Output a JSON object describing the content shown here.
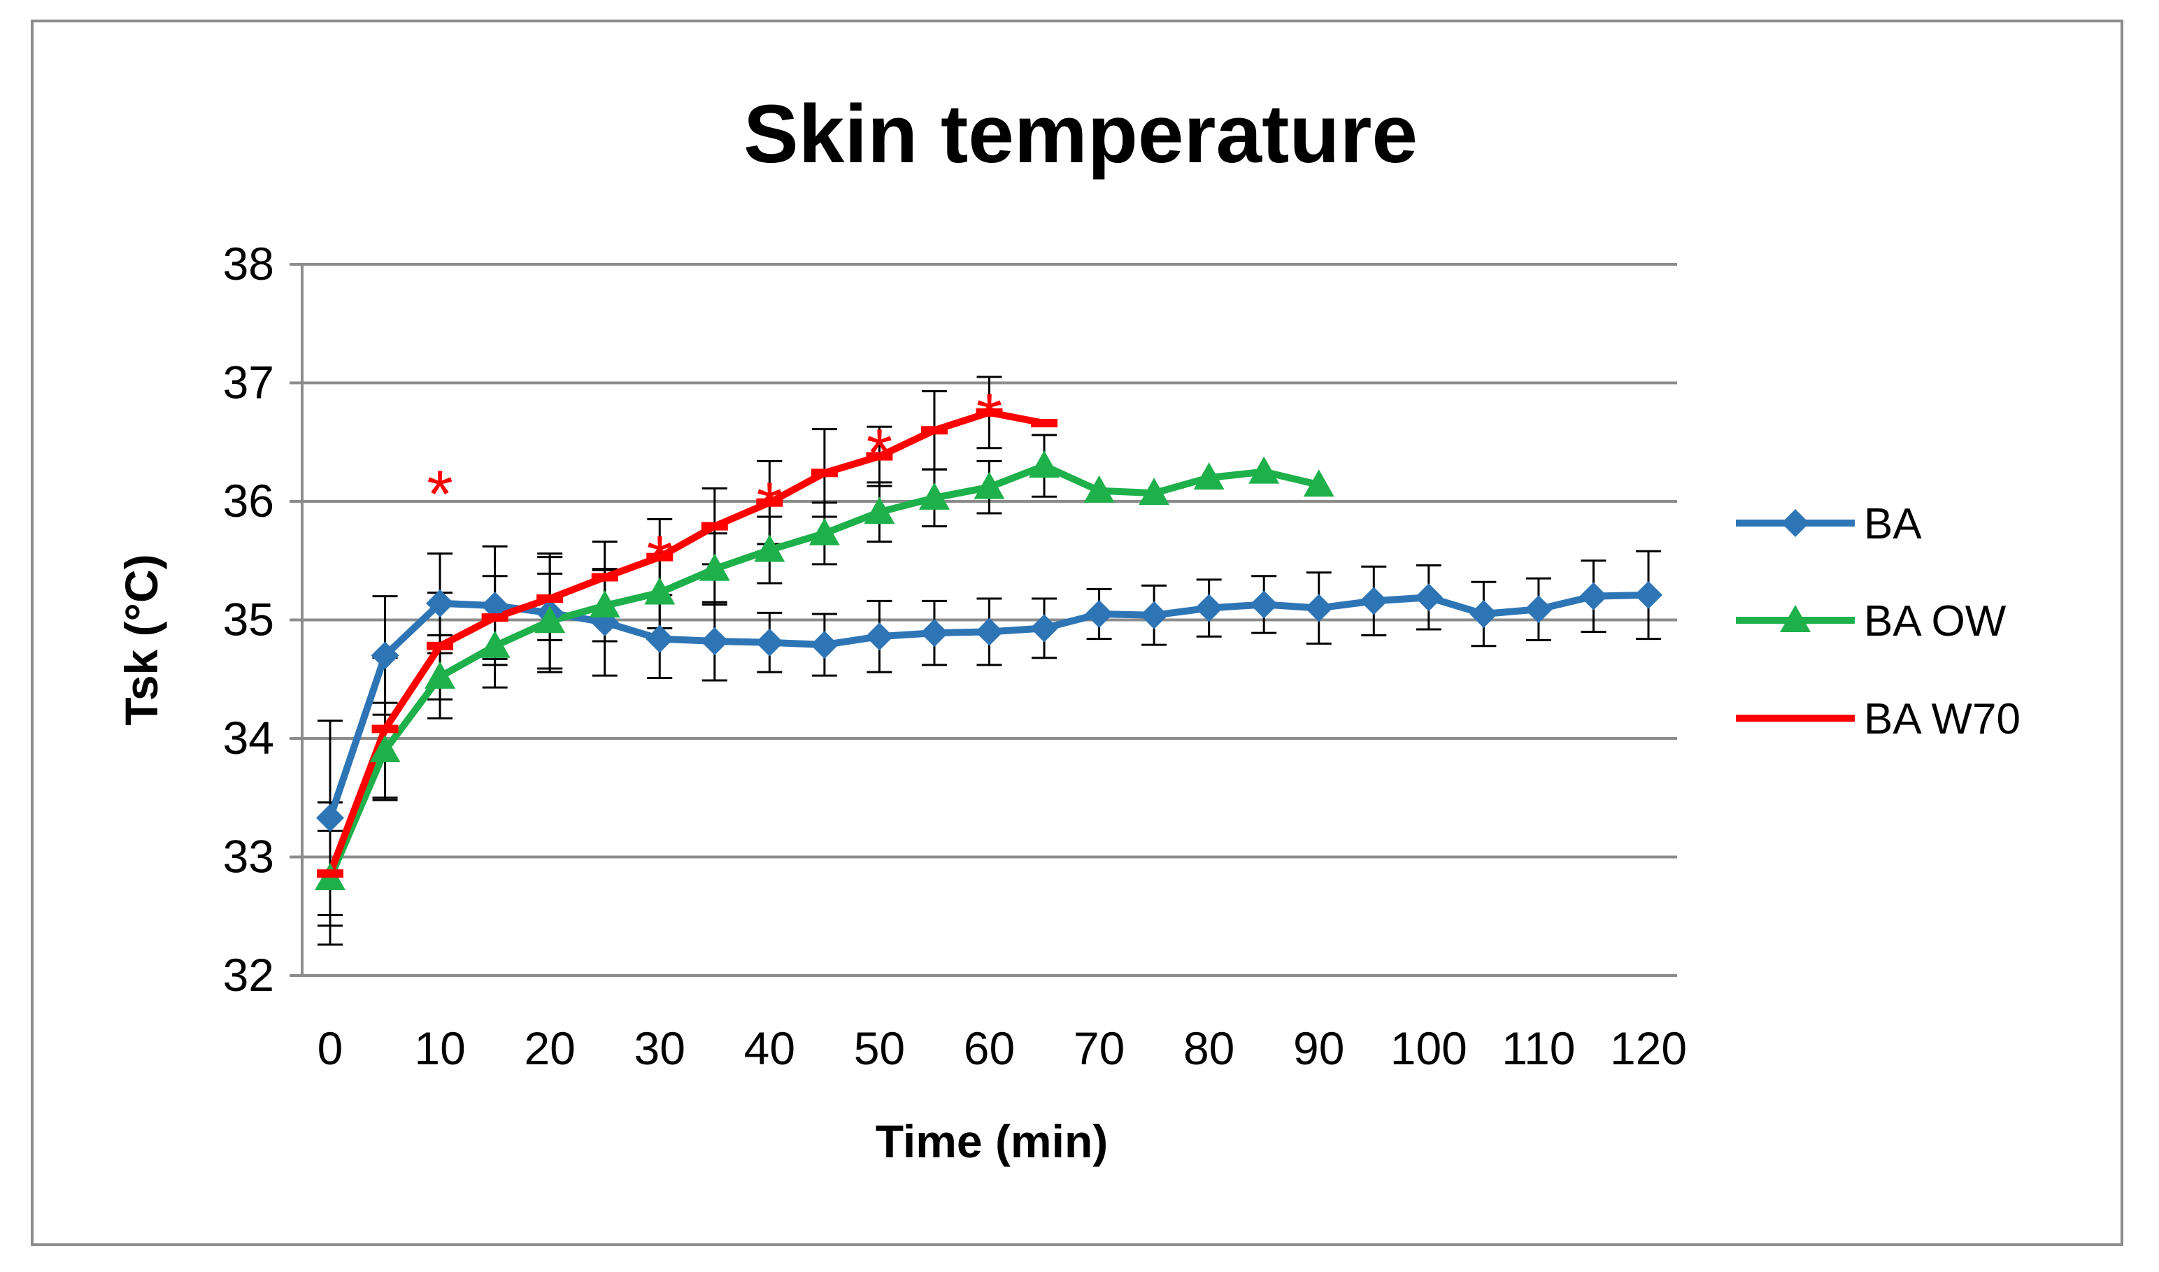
{
  "chart_data": {
    "type": "line",
    "title": "Skin temperature",
    "xlabel": "Time (min)",
    "ylabel": "Tsk (°C)",
    "xlim": [
      0,
      120
    ],
    "ylim": [
      32,
      38
    ],
    "x_ticks": [
      0,
      10,
      20,
      30,
      40,
      50,
      60,
      70,
      80,
      90,
      100,
      110,
      120
    ],
    "y_ticks": [
      32,
      33,
      34,
      35,
      36,
      37,
      38
    ],
    "grid": "horizontal",
    "legend_position": "right",
    "series": [
      {
        "name": "BA",
        "color": "#2e75b6",
        "marker": "diamond",
        "x": [
          0,
          5,
          10,
          15,
          20,
          25,
          30,
          35,
          40,
          45,
          50,
          55,
          60,
          65,
          70,
          75,
          80,
          85,
          90,
          95,
          100,
          105,
          110,
          115,
          120
        ],
        "values": [
          33.33,
          34.7,
          35.14,
          35.12,
          35.06,
          34.98,
          34.84,
          34.82,
          34.81,
          34.79,
          34.86,
          34.89,
          34.9,
          34.93,
          35.05,
          35.04,
          35.1,
          35.13,
          35.1,
          35.16,
          35.19,
          35.05,
          35.09,
          35.2,
          35.21
        ],
        "errors": [
          0.82,
          0.5,
          0.42,
          0.5,
          0.5,
          0.45,
          0.33,
          0.33,
          0.25,
          0.26,
          0.3,
          0.27,
          0.28,
          0.25,
          0.21,
          0.25,
          0.24,
          0.24,
          0.3,
          0.29,
          0.27,
          0.27,
          0.26,
          0.3,
          0.37
        ]
      },
      {
        "name": "BA OW",
        "color": "#1eb04a",
        "marker": "triangle",
        "x": [
          0,
          5,
          10,
          15,
          20,
          25,
          30,
          35,
          40,
          45,
          50,
          55,
          60,
          65,
          70,
          75,
          80,
          85,
          90
        ],
        "values": [
          32.82,
          33.9,
          34.52,
          34.78,
          34.99,
          35.12,
          35.23,
          35.43,
          35.59,
          35.73,
          35.91,
          36.03,
          36.12,
          36.3,
          36.09,
          36.07,
          36.2,
          36.25,
          36.14
        ],
        "errors": [
          0.4,
          0.4,
          0.35,
          0.35,
          0.4,
          0.3,
          0.3,
          0.3,
          0.28,
          0.26,
          0.25,
          0.24,
          0.22,
          0.26,
          0,
          0,
          0,
          0,
          0
        ]
      },
      {
        "name": "BA W70",
        "color": "#ff0000",
        "marker": "dash",
        "x": [
          0,
          5,
          10,
          15,
          20,
          25,
          30,
          35,
          40,
          45,
          50,
          55,
          60,
          65
        ],
        "values": [
          32.86,
          34.08,
          34.78,
          35.02,
          35.18,
          35.36,
          35.53,
          35.79,
          35.99,
          36.24,
          36.38,
          36.6,
          36.75,
          36.66
        ],
        "errors": [
          0.6,
          0.6,
          0.45,
          0.35,
          0.35,
          0.3,
          0.32,
          0.32,
          0.35,
          0.37,
          0.25,
          0.33,
          0.3,
          0
        ]
      }
    ],
    "annotations": [
      {
        "text": "*",
        "x": 10,
        "y": 36.15
      },
      {
        "text": "*",
        "x": 30,
        "y": 35.6
      },
      {
        "text": "*",
        "x": 40,
        "y": 36.05
      },
      {
        "text": "*",
        "x": 50,
        "y": 36.5
      },
      {
        "text": "*",
        "x": 60,
        "y": 36.8
      }
    ]
  }
}
